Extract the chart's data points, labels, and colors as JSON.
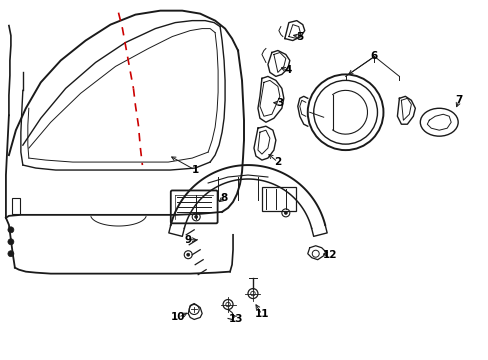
{
  "background_color": "#ffffff",
  "line_color": "#1a1a1a",
  "red_color": "#cc0000",
  "figsize": [
    4.89,
    3.6
  ],
  "dpi": 100,
  "panel_color": "#1a1a1a"
}
